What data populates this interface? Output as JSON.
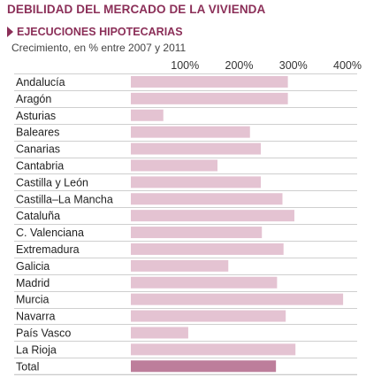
{
  "header": {
    "title": "DEBILIDAD DEL MERCADO DE LA VIVIENDA",
    "subtitle": "EJECUCIONES HIPOTECARIAS",
    "caption": "Crecimiento, en % entre 2007 y 2011"
  },
  "colors": {
    "accent": "#8b2f58",
    "bar": "#e4c3d2",
    "bar_total": "#bd7e9b"
  },
  "chart_data": {
    "type": "bar",
    "orientation": "horizontal",
    "title": "",
    "xlabel": "",
    "ylabel": "",
    "xlim": [
      0,
      400
    ],
    "xticks": [
      100,
      200,
      300,
      400
    ],
    "tick_labels": [
      "100%",
      "200%",
      "300%",
      "400%"
    ],
    "grid": false,
    "categories": [
      "Andalucía",
      "Aragón",
      "Asturias",
      "Baleares",
      "Canarias",
      "Cantabria",
      "Castilla y León",
      "Castilla–La Mancha",
      "Cataluña",
      "C. Valenciana",
      "Extremadura",
      "Galicia",
      "Madrid",
      "Murcia",
      "Navarra",
      "País Vasco",
      "La Rioja",
      "Total"
    ],
    "values": [
      290,
      290,
      60,
      220,
      240,
      160,
      240,
      280,
      302,
      242,
      282,
      180,
      270,
      392,
      286,
      106,
      304,
      268
    ]
  }
}
